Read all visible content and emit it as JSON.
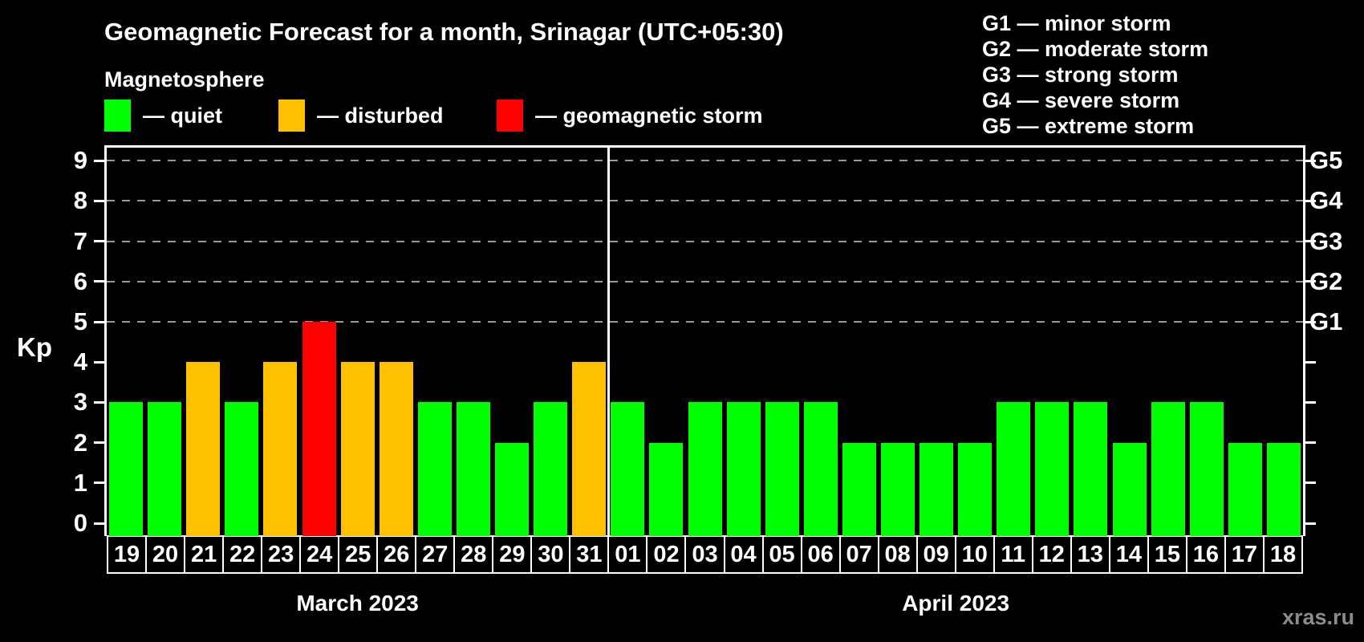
{
  "title": "Geomagnetic Forecast for a month, Srinagar (UTC+05:30)",
  "subtitle": "Magnetosphere",
  "legend": {
    "items": [
      {
        "key": "quiet",
        "label": "— quiet",
        "color": "#00ff00"
      },
      {
        "key": "disturbed",
        "label": "— disturbed",
        "color": "#ffc000"
      },
      {
        "key": "storm",
        "label": "— geomagnetic storm",
        "color": "#ff0000"
      }
    ]
  },
  "g_legend": [
    "G1 — minor storm",
    "G2 — moderate storm",
    "G3 — strong storm",
    "G4 — severe storm",
    "G5 — extreme storm"
  ],
  "watermark": "xras.ru",
  "chart_data": {
    "type": "bar",
    "ylabel": "Kp",
    "ylim": [
      0,
      9
    ],
    "y_ticks": [
      0,
      1,
      2,
      3,
      4,
      5,
      6,
      7,
      8,
      9
    ],
    "gridlines_kp": [
      5,
      6,
      7,
      8,
      9
    ],
    "grid": "dashed",
    "right_axis_labels": [
      {
        "kp": 5,
        "label": "G1"
      },
      {
        "kp": 6,
        "label": "G2"
      },
      {
        "kp": 7,
        "label": "G3"
      },
      {
        "kp": 8,
        "label": "G4"
      },
      {
        "kp": 9,
        "label": "G5"
      }
    ],
    "status_colors": {
      "quiet": "#00ff00",
      "disturbed": "#ffc000",
      "storm": "#ff0000"
    },
    "groups": [
      {
        "label": "March 2023",
        "bars": [
          {
            "day": "19",
            "kp": 3,
            "status": "quiet"
          },
          {
            "day": "20",
            "kp": 3,
            "status": "quiet"
          },
          {
            "day": "21",
            "kp": 4,
            "status": "disturbed"
          },
          {
            "day": "22",
            "kp": 3,
            "status": "quiet"
          },
          {
            "day": "23",
            "kp": 4,
            "status": "disturbed"
          },
          {
            "day": "24",
            "kp": 5,
            "status": "storm"
          },
          {
            "day": "25",
            "kp": 4,
            "status": "disturbed"
          },
          {
            "day": "26",
            "kp": 4,
            "status": "disturbed"
          },
          {
            "day": "27",
            "kp": 3,
            "status": "quiet"
          },
          {
            "day": "28",
            "kp": 3,
            "status": "quiet"
          },
          {
            "day": "29",
            "kp": 2,
            "status": "quiet"
          },
          {
            "day": "30",
            "kp": 3,
            "status": "quiet"
          },
          {
            "day": "31",
            "kp": 4,
            "status": "disturbed"
          }
        ]
      },
      {
        "label": "April 2023",
        "bars": [
          {
            "day": "01",
            "kp": 3,
            "status": "quiet"
          },
          {
            "day": "02",
            "kp": 2,
            "status": "quiet"
          },
          {
            "day": "03",
            "kp": 3,
            "status": "quiet"
          },
          {
            "day": "04",
            "kp": 3,
            "status": "quiet"
          },
          {
            "day": "05",
            "kp": 3,
            "status": "quiet"
          },
          {
            "day": "06",
            "kp": 3,
            "status": "quiet"
          },
          {
            "day": "07",
            "kp": 2,
            "status": "quiet"
          },
          {
            "day": "08",
            "kp": 2,
            "status": "quiet"
          },
          {
            "day": "09",
            "kp": 2,
            "status": "quiet"
          },
          {
            "day": "10",
            "kp": 2,
            "status": "quiet"
          },
          {
            "day": "11",
            "kp": 3,
            "status": "quiet"
          },
          {
            "day": "12",
            "kp": 3,
            "status": "quiet"
          },
          {
            "day": "13",
            "kp": 3,
            "status": "quiet"
          },
          {
            "day": "14",
            "kp": 2,
            "status": "quiet"
          },
          {
            "day": "15",
            "kp": 3,
            "status": "quiet"
          },
          {
            "day": "16",
            "kp": 3,
            "status": "quiet"
          },
          {
            "day": "17",
            "kp": 2,
            "status": "quiet"
          },
          {
            "day": "18",
            "kp": 2,
            "status": "quiet"
          }
        ]
      }
    ]
  }
}
